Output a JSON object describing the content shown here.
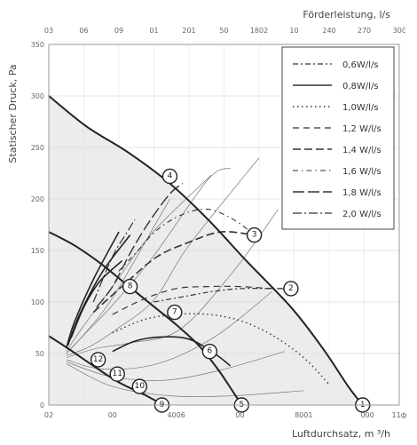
{
  "chart_data": {
    "type": "line",
    "title": "",
    "xlabel_bottom": "Luftdurchsatz, m ³/h",
    "xlabel_top": "Förderleistung, l/s",
    "ylabel": "Statischer Druck, Pa",
    "ylim": [
      0,
      350
    ],
    "xlim": [
      0,
      1100
    ],
    "y_ticks": [
      "0",
      "50",
      "100",
      "150",
      "200",
      "250",
      "300",
      "350"
    ],
    "x_ticks_bottom": [
      "02",
      "00",
      "4006",
      "00",
      "8001",
      "000",
      "11ф"
    ],
    "x_ticks_top": [
      "03",
      "06",
      "09",
      "01",
      "201",
      "50",
      "1802",
      "10",
      "240",
      "270",
      "30č"
    ],
    "grid": true,
    "legend_position": "top-right",
    "legend": [
      {
        "label": "0,6W/l/s",
        "dash": "6 3 2 3",
        "width": 1.2
      },
      {
        "label": "0,8W/l/s",
        "dash": "",
        "width": 1.6
      },
      {
        "label": "1,0W/l/s",
        "dash": "1.5 3.5",
        "width": 1.4
      },
      {
        "label": "1,2 W/l/s",
        "dash": "7 5",
        "width": 1.2
      },
      {
        "label": "1,4 W/l/s",
        "dash": "9 4",
        "width": 1.6
      },
      {
        "label": "1,6 W/l/s",
        "dash": "6 4 1.5 4",
        "width": 1.1
      },
      {
        "label": "1,8 W/l/s",
        "dash": "13 4",
        "width": 1.4
      },
      {
        "label": "2,0 W/l/s",
        "dash": "10 3 2 3",
        "width": 1.2
      }
    ],
    "fan_curves": [
      {
        "name": "fan-curve-max",
        "points": [
          [
            0,
            300
          ],
          [
            120,
            270
          ],
          [
            250,
            245
          ],
          [
            380,
            215
          ],
          [
            500,
            180
          ],
          [
            620,
            140
          ],
          [
            760,
            95
          ],
          [
            860,
            55
          ],
          [
            940,
            18
          ],
          [
            985,
            0
          ]
        ]
      },
      {
        "name": "fan-curve-mid",
        "points": [
          [
            0,
            168
          ],
          [
            80,
            155
          ],
          [
            160,
            138
          ],
          [
            240,
            118
          ],
          [
            320,
            98
          ],
          [
            400,
            78
          ],
          [
            470,
            58
          ],
          [
            530,
            35
          ],
          [
            580,
            12
          ],
          [
            605,
            0
          ]
        ]
      },
      {
        "name": "fan-curve-low",
        "points": [
          [
            0,
            67
          ],
          [
            60,
            55
          ],
          [
            140,
            38
          ],
          [
            220,
            22
          ],
          [
            300,
            10
          ],
          [
            360,
            0
          ]
        ]
      }
    ],
    "system_lines": [
      {
        "name": "system-line-1",
        "points": [
          [
            55,
            50
          ],
          [
            115,
            70
          ],
          [
            200,
            104
          ],
          [
            330,
            173
          ],
          [
            380,
            200
          ]
        ]
      },
      {
        "name": "system-line-2",
        "points": [
          [
            55,
            52
          ],
          [
            105,
            75
          ],
          [
            200,
            115
          ],
          [
            330,
            169
          ],
          [
            510,
            223
          ]
        ]
      },
      {
        "name": "system-line-3",
        "points": [
          [
            55,
            50
          ],
          [
            110,
            68
          ],
          [
            200,
            97
          ],
          [
            330,
            145
          ],
          [
            500,
            219
          ],
          [
            570,
            230
          ]
        ]
      },
      {
        "name": "system-line-4",
        "points": [
          [
            55,
            48
          ],
          [
            130,
            57
          ],
          [
            210,
            73
          ],
          [
            330,
            102
          ],
          [
            440,
            155
          ],
          [
            660,
            240
          ]
        ]
      },
      {
        "name": "system-line-5",
        "points": [
          [
            55,
            46
          ],
          [
            150,
            55
          ],
          [
            250,
            60
          ],
          [
            410,
            73
          ],
          [
            580,
            130
          ],
          [
            720,
            190
          ]
        ]
      },
      {
        "name": "system-line-6",
        "points": [
          [
            55,
            44
          ],
          [
            170,
            35
          ],
          [
            340,
            40
          ],
          [
            520,
            66
          ],
          [
            700,
            110
          ]
        ]
      },
      {
        "name": "system-line-7",
        "points": [
          [
            55,
            42
          ],
          [
            190,
            28
          ],
          [
            360,
            24
          ],
          [
            540,
            34
          ],
          [
            740,
            52
          ]
        ]
      },
      {
        "name": "system-line-8",
        "points": [
          [
            55,
            40
          ],
          [
            200,
            18
          ],
          [
            380,
            9
          ],
          [
            580,
            9
          ],
          [
            800,
            14
          ]
        ]
      }
    ],
    "solid_series": [
      {
        "name": "curve-0-8-a",
        "points": [
          [
            55,
            55
          ],
          [
            80,
            80
          ],
          [
            140,
            122
          ],
          [
            220,
            168
          ]
        ]
      },
      {
        "name": "curve-0-8-b",
        "points": [
          [
            60,
            58
          ],
          [
            100,
            90
          ],
          [
            170,
            130
          ],
          [
            255,
            165
          ]
        ]
      },
      {
        "name": "curve-0-8-c",
        "points": [
          [
            70,
            65
          ],
          [
            110,
            95
          ],
          [
            160,
            120
          ],
          [
            230,
            140
          ]
        ]
      },
      {
        "name": "curve-0-8-d",
        "points": [
          [
            200,
            52
          ],
          [
            270,
            62
          ],
          [
            350,
            66
          ],
          [
            440,
            64
          ],
          [
            520,
            50
          ],
          [
            570,
            38
          ]
        ]
      }
    ],
    "operating_points": [
      {
        "label": "1",
        "x": 985,
        "y": 0
      },
      {
        "label": "2",
        "x": 760,
        "y": 113
      },
      {
        "label": "3",
        "x": 645,
        "y": 165
      },
      {
        "label": "4",
        "x": 380,
        "y": 222
      },
      {
        "label": "5",
        "x": 605,
        "y": 0
      },
      {
        "label": "6",
        "x": 505,
        "y": 52
      },
      {
        "label": "7",
        "x": 395,
        "y": 90
      },
      {
        "label": "8",
        "x": 255,
        "y": 115
      },
      {
        "label": "9",
        "x": 355,
        "y": 0
      },
      {
        "label": "10",
        "x": 285,
        "y": 18
      },
      {
        "label": "11",
        "x": 215,
        "y": 30
      },
      {
        "label": "12",
        "x": 155,
        "y": 44
      }
    ],
    "efficiency_curves": [
      {
        "name": "curve-0-6",
        "style": 0,
        "points": [
          [
            330,
            100
          ],
          [
            420,
            105
          ],
          [
            510,
            110
          ],
          [
            600,
            113
          ],
          [
            700,
            113
          ],
          [
            760,
            113
          ]
        ]
      },
      {
        "name": "curve-1-0",
        "style": 2,
        "points": [
          [
            200,
            70
          ],
          [
            300,
            83
          ],
          [
            400,
            88
          ],
          [
            500,
            88
          ],
          [
            600,
            82
          ],
          [
            700,
            68
          ],
          [
            800,
            46
          ],
          [
            880,
            20
          ]
        ]
      },
      {
        "name": "curve-1-2",
        "style": 3,
        "points": [
          [
            200,
            88
          ],
          [
            300,
            103
          ],
          [
            400,
            113
          ],
          [
            500,
            115
          ],
          [
            600,
            115
          ],
          [
            700,
            113
          ],
          [
            760,
            113
          ]
        ]
      },
      {
        "name": "curve-1-4",
        "style": 4,
        "points": [
          [
            140,
            90
          ],
          [
            240,
            118
          ],
          [
            340,
            144
          ],
          [
            440,
            158
          ],
          [
            540,
            168
          ],
          [
            645,
            165
          ]
        ]
      },
      {
        "name": "curve-1-6",
        "style": 5,
        "points": [
          [
            220,
            130
          ],
          [
            280,
            150
          ],
          [
            340,
            170
          ],
          [
            420,
            185
          ],
          [
            500,
            190
          ],
          [
            580,
            180
          ],
          [
            645,
            165
          ]
        ]
      },
      {
        "name": "curve-1-8",
        "style": 6,
        "points": [
          [
            150,
            95
          ],
          [
            200,
            115
          ],
          [
            260,
            150
          ],
          [
            320,
            180
          ],
          [
            380,
            205
          ],
          [
            420,
            215
          ]
        ]
      },
      {
        "name": "curve-2-0",
        "style": 7,
        "points": [
          [
            140,
            100
          ],
          [
            180,
            130
          ],
          [
            210,
            150
          ],
          [
            240,
            165
          ],
          [
            270,
            180
          ]
        ]
      }
    ]
  }
}
